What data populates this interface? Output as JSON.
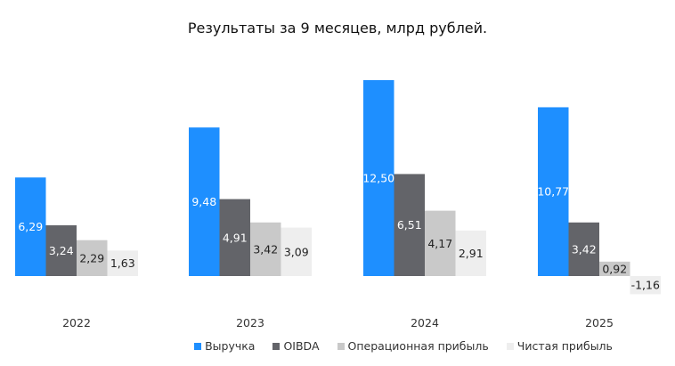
{
  "chart_data": {
    "type": "bar",
    "title": "Результаты за 9 месяцев, млрд рублей.",
    "categories": [
      "2022",
      "2023",
      "2024",
      "2025"
    ],
    "series": [
      {
        "name": "Выручка",
        "color": "#1e8fff",
        "label_color": "#ffffff",
        "values": [
          6.29,
          9.48,
          12.5,
          10.77
        ],
        "labels": [
          "6,29",
          "9,48",
          "12,50",
          "10,77"
        ]
      },
      {
        "name": "OIBDA",
        "color": "#636469",
        "label_color": "#ffffff",
        "values": [
          3.24,
          4.91,
          6.51,
          3.42
        ],
        "labels": [
          "3,24",
          "4,91",
          "6,51",
          "3,42"
        ]
      },
      {
        "name": "Операционная прибыль",
        "color": "#c9c9c9",
        "label_color": "#222222",
        "values": [
          2.29,
          3.42,
          4.17,
          0.92
        ],
        "labels": [
          "2,29",
          "3,42",
          "4,17",
          "0,92"
        ]
      },
      {
        "name": "Чистая прибыль",
        "color": "#eeeeee",
        "label_color": "#222222",
        "values": [
          1.63,
          3.09,
          2.91,
          -1.16
        ],
        "labels": [
          "1,63",
          "3,09",
          "2,91",
          "-1,16"
        ]
      }
    ],
    "xlabel": "",
    "ylabel": "",
    "grid": false,
    "legend": "bottom"
  }
}
